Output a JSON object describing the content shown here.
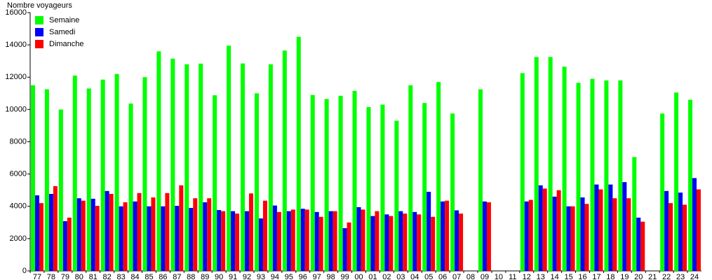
{
  "chart_data": {
    "type": "bar",
    "y_label": "Nombre voyageurs",
    "categories": [
      "77",
      "78",
      "79",
      "80",
      "81",
      "82",
      "83",
      "84",
      "85",
      "86",
      "87",
      "88",
      "89",
      "90",
      "91",
      "92",
      "93",
      "94",
      "95",
      "96",
      "97",
      "98",
      "99",
      "00",
      "01",
      "02",
      "03",
      "04",
      "05",
      "06",
      "07",
      "08",
      "09",
      "10",
      "11",
      "12",
      "13",
      "14",
      "15",
      "16",
      "17",
      "18",
      "19",
      "20",
      "21",
      "22",
      "23",
      "24"
    ],
    "series": [
      {
        "name": "Semaine",
        "color": "#00ff00",
        "values": [
          11500,
          11250,
          10000,
          12100,
          11300,
          11850,
          12200,
          10370,
          12000,
          13600,
          13150,
          12800,
          12840,
          10880,
          13950,
          12850,
          11000,
          12800,
          13650,
          14500,
          10900,
          10650,
          10850,
          11150,
          10150,
          10300,
          9300,
          11500,
          10400,
          11700,
          9750,
          null,
          11250,
          null,
          null,
          12250,
          13250,
          13250,
          12650,
          11650,
          11900,
          11800,
          11800,
          7050,
          null,
          9750,
          11050,
          10600
        ]
      },
      {
        "name": "Samedi",
        "color": "#0000ff",
        "values": [
          4680,
          4770,
          3080,
          4500,
          4470,
          4950,
          4000,
          4300,
          4000,
          4000,
          4030,
          3900,
          4250,
          3770,
          3700,
          3700,
          3250,
          4050,
          3700,
          3850,
          3650,
          3700,
          2650,
          3950,
          3400,
          3500,
          3700,
          3650,
          4900,
          4300,
          3750,
          null,
          4300,
          null,
          null,
          4300,
          5300,
          4600,
          4000,
          4550,
          5350,
          5350,
          5500,
          3300,
          null,
          4950,
          4850,
          5750
        ]
      },
      {
        "name": "Dimanche",
        "color": "#ff0000",
        "values": [
          4200,
          5250,
          3300,
          4350,
          4030,
          4770,
          4250,
          4820,
          4550,
          4820,
          5300,
          4500,
          4500,
          3700,
          3550,
          4800,
          4350,
          3650,
          3800,
          3800,
          3350,
          3700,
          3000,
          3800,
          3700,
          3400,
          3550,
          3500,
          3350,
          4350,
          3550,
          null,
          4250,
          null,
          null,
          4400,
          5100,
          5000,
          4000,
          4150,
          5050,
          4500,
          4500,
          3050,
          null,
          4200,
          4100,
          5050
        ]
      }
    ],
    "ylim": [
      0,
      16000
    ],
    "yticks": [
      0,
      2000,
      4000,
      6000,
      8000,
      10000,
      12000,
      14000,
      16000
    ],
    "legend": "top-left"
  }
}
